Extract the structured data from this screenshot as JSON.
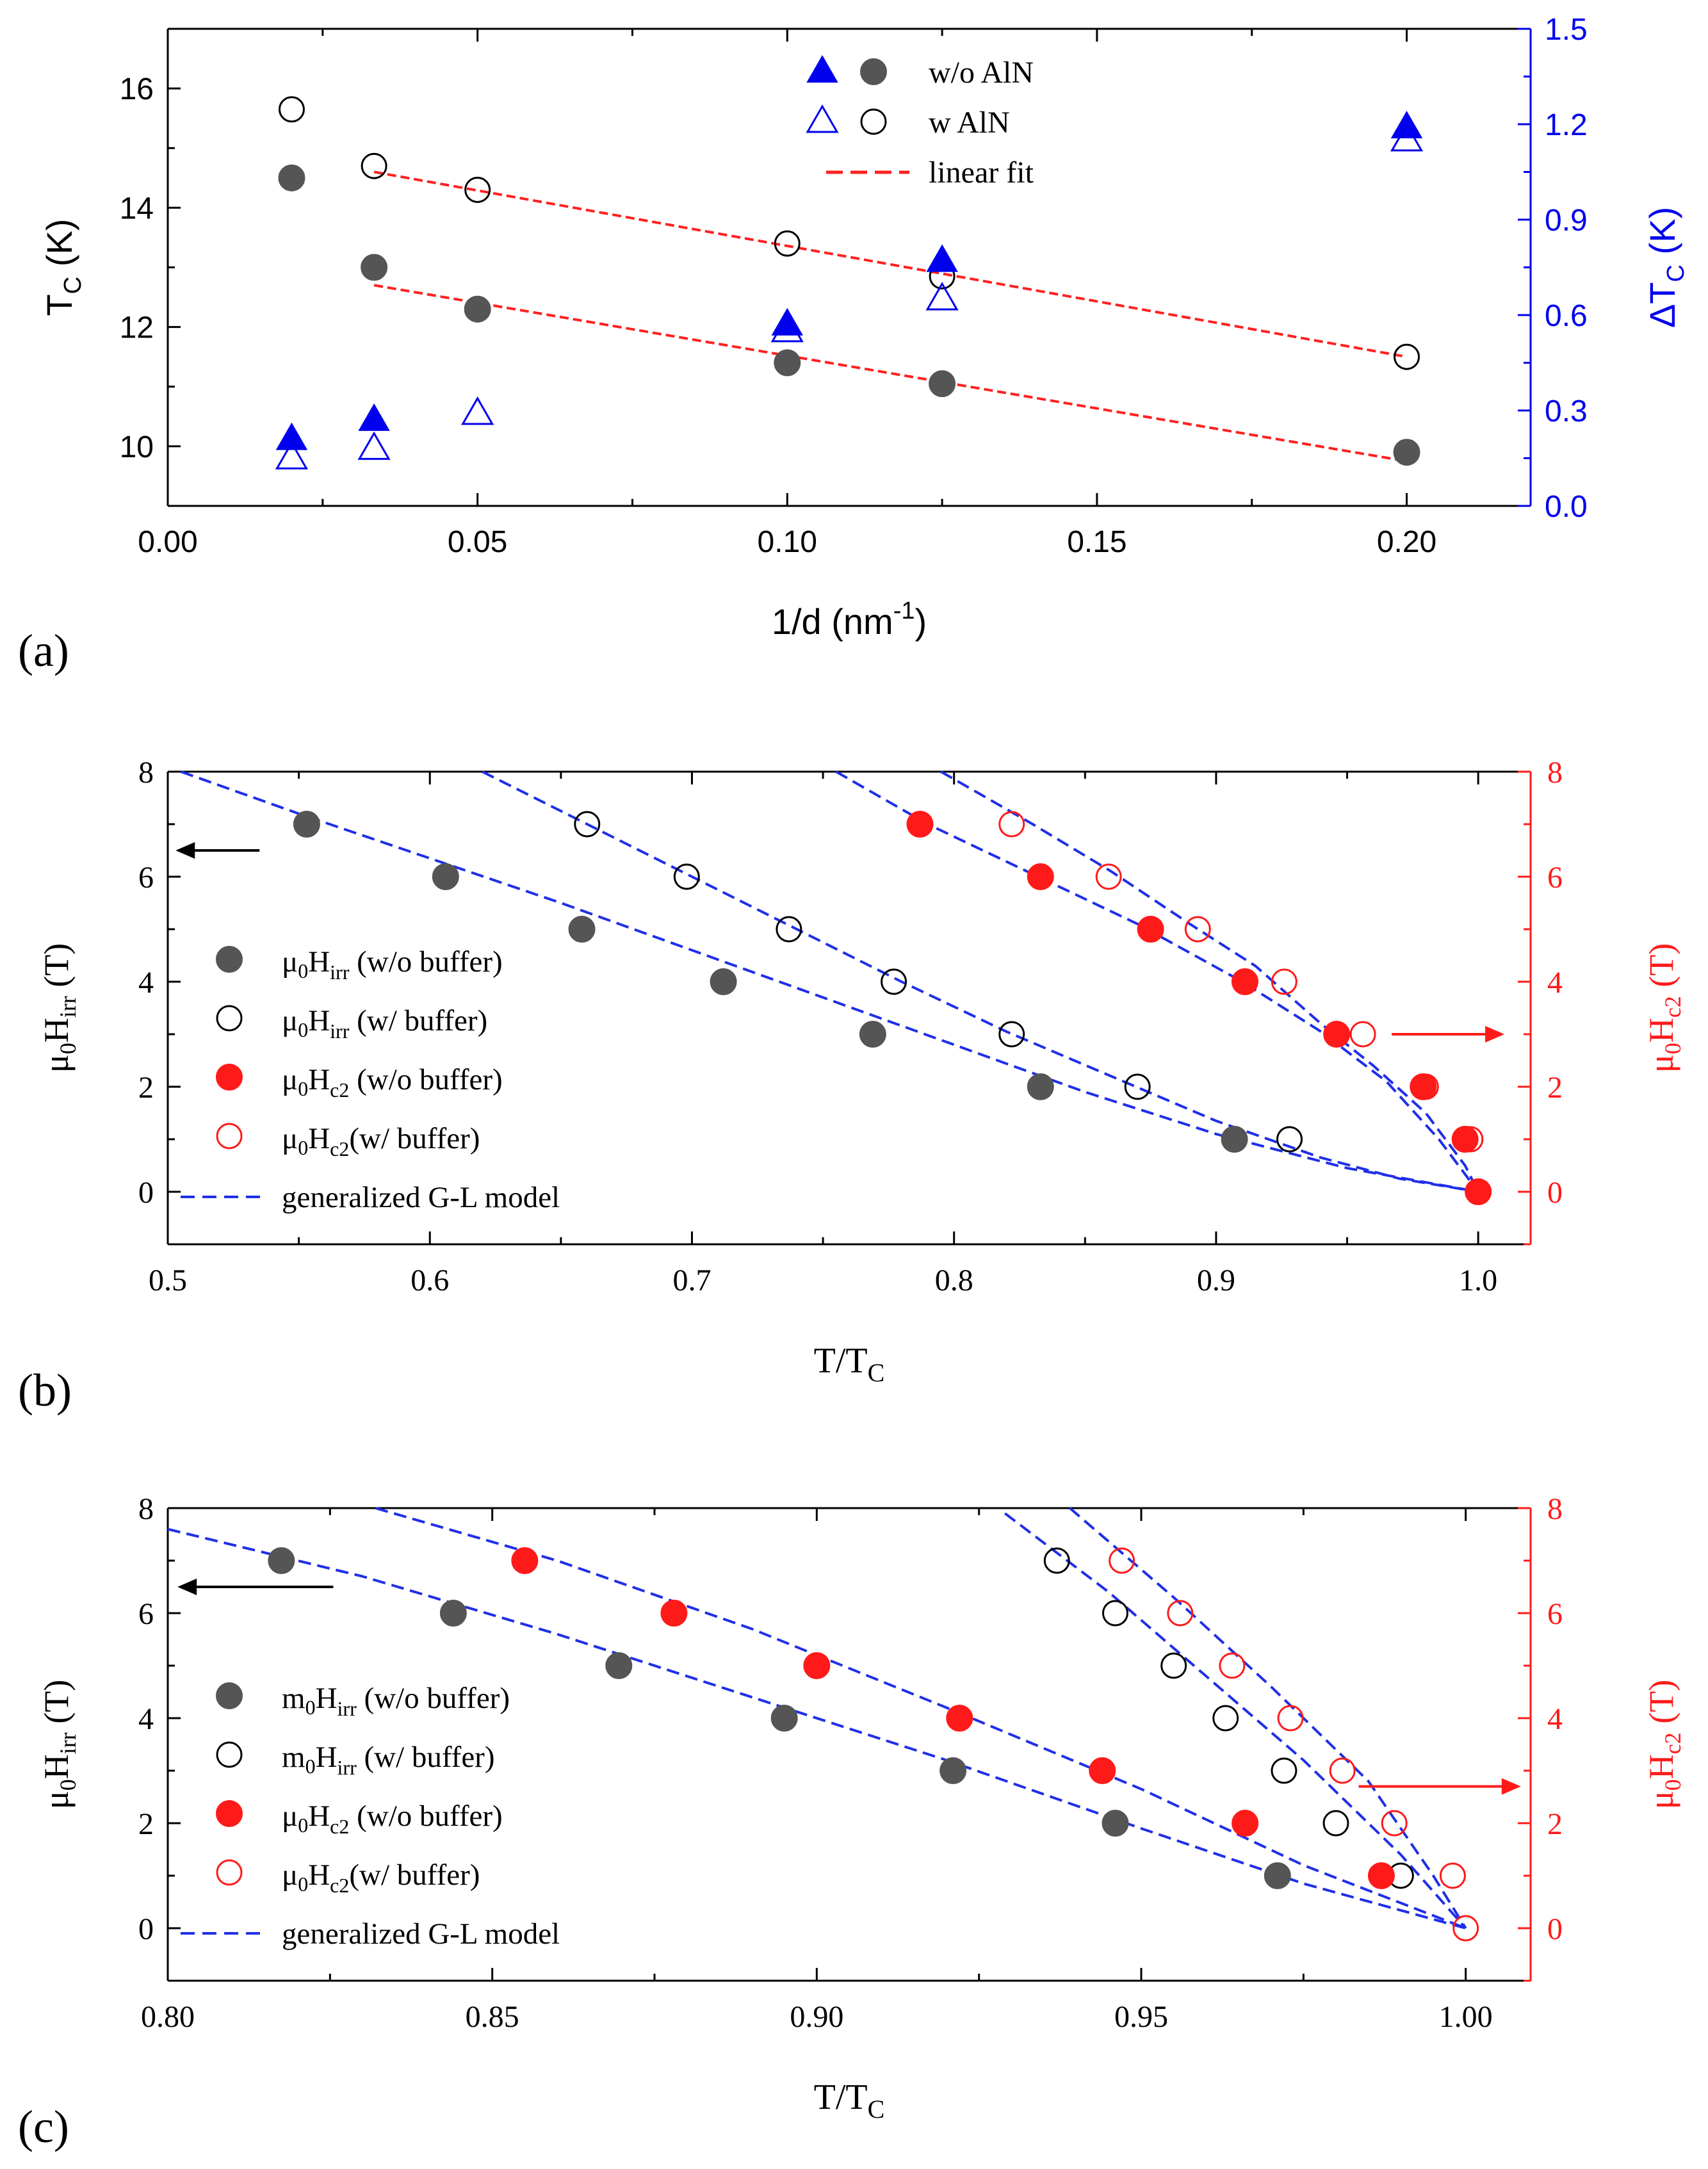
{
  "colors": {
    "axis": "#000000",
    "blue": "#0000ee",
    "red": "#ff1a1a",
    "gray": "#555555",
    "fitRed": "#ff2020",
    "fitBlue": "#1f2fe8"
  },
  "chart_data": [
    {
      "id": "a",
      "type": "scatter",
      "panel_label": "(a)",
      "xlabel": "1/d (nm",
      "xlabel_sup": "-1",
      "xlabel_end": ")",
      "ylabel": "T",
      "ylabel_sub": "C",
      "ylabel_end": " (K)",
      "y2label": "ΔT",
      "y2label_sub": "C",
      "y2label_end": " (K)",
      "xlim": [
        0,
        0.22
      ],
      "ylim": [
        9,
        17
      ],
      "y2lim": [
        0,
        1.5
      ],
      "xticks": [
        0,
        0.05,
        0.1,
        0.15,
        0.2
      ],
      "xticklabels": [
        "0.00",
        "0.05",
        "0.10",
        "0.15",
        "0.20"
      ],
      "yticks": [
        10,
        12,
        14,
        16
      ],
      "yticklabels": [
        "10",
        "12",
        "14",
        "16"
      ],
      "y2ticks": [
        0,
        0.3,
        0.6,
        0.9,
        1.2,
        1.5
      ],
      "y2ticklabels": [
        "0.0",
        "0.3",
        "0.6",
        "0.9",
        "1.2",
        "1.5"
      ],
      "legend": [
        {
          "symbols": [
            "tri-filled",
            "circle-filled"
          ],
          "text": "w/o AlN"
        },
        {
          "symbols": [
            "tri-open",
            "circle-open"
          ],
          "text": "w AlN"
        },
        {
          "symbols": [
            "dash-red"
          ],
          "text": "linear fit"
        }
      ],
      "series": [
        {
          "name": "Tc w/o AlN",
          "marker": "circle-filled",
          "axis": "left",
          "x": [
            0.02,
            0.0333,
            0.05,
            0.1,
            0.125,
            0.2
          ],
          "y": [
            14.5,
            13.0,
            12.3,
            11.4,
            11.05,
            9.9
          ]
        },
        {
          "name": "Tc w AlN",
          "marker": "circle-open",
          "axis": "left",
          "x": [
            0.02,
            0.0333,
            0.05,
            0.1,
            0.125,
            0.2
          ],
          "y": [
            15.65,
            14.7,
            14.3,
            13.4,
            12.85,
            11.5
          ]
        },
        {
          "name": "dTc w/o AlN",
          "marker": "tri-filled",
          "axis": "right",
          "x": [
            0.02,
            0.0333,
            0.1,
            0.125,
            0.2
          ],
          "y": [
            0.21,
            0.27,
            0.57,
            0.77,
            1.19
          ]
        },
        {
          "name": "dTc w AlN",
          "marker": "tri-open",
          "axis": "right",
          "x": [
            0.02,
            0.0333,
            0.05,
            0.1,
            0.125,
            0.2
          ],
          "y": [
            0.15,
            0.18,
            0.29,
            0.55,
            0.65,
            1.15
          ]
        }
      ],
      "fits": [
        {
          "name": "fit w/o AlN",
          "x": [
            0.0333,
            0.2
          ],
          "y": [
            12.7,
            9.75
          ]
        },
        {
          "name": "fit w AlN",
          "x": [
            0.0333,
            0.2
          ],
          "y": [
            14.6,
            11.5
          ]
        }
      ]
    },
    {
      "id": "b",
      "type": "scatter",
      "panel_label": "(b)",
      "xlabel": "T/T",
      "xlabel_sub": "C",
      "ylabel_mu": "μ",
      "ylabel_0": "0",
      "ylabel_H": "H",
      "ylabel_sub": "irr",
      "ylabel_end": " (T)",
      "y2label_mu": "μ",
      "y2label_0": "0",
      "y2label_H": "H",
      "y2label_sub": "c2",
      "y2label_end": " (T)",
      "xlim": [
        0.5,
        1.02
      ],
      "ylim": [
        -1,
        8
      ],
      "xticks": [
        0.5,
        0.6,
        0.7,
        0.8,
        0.9,
        1.0
      ],
      "xticklabels": [
        "0.5",
        "0.6",
        "0.7",
        "0.8",
        "0.9",
        "1.0"
      ],
      "yticks": [
        0,
        2,
        4,
        6,
        8
      ],
      "yticklabels": [
        "0",
        "2",
        "4",
        "6",
        "8"
      ],
      "legend": [
        {
          "symbol": "circle-filled",
          "pre": "μ",
          "zero": "0",
          "H": "H",
          "sub": "irr",
          "text": " (w/o buffer)"
        },
        {
          "symbol": "circle-open",
          "pre": "μ",
          "zero": "0",
          "H": "H",
          "sub": "irr",
          "text": "  (w/ buffer)"
        },
        {
          "symbol": "circle-red-filled",
          "pre": "μ",
          "zero": "0",
          "H": "H",
          "sub": "c2",
          "text": " (w/o buffer)"
        },
        {
          "symbol": "circle-red-open",
          "pre": "μ",
          "zero": "0",
          "H": "H",
          "sub": "c2",
          "text": "(w/ buffer)"
        },
        {
          "symbol": "dash-blue",
          "text": "generalized G-L model"
        }
      ],
      "series": [
        {
          "name": "Hirr w/o buffer",
          "marker": "circle-filled",
          "x": [
            0.553,
            0.606,
            0.658,
            0.712,
            0.769,
            0.833,
            0.907
          ],
          "y": [
            7,
            6,
            5,
            4,
            3,
            2,
            1
          ]
        },
        {
          "name": "Hirr w/ buffer",
          "marker": "circle-open",
          "x": [
            0.66,
            0.698,
            0.737,
            0.777,
            0.822,
            0.87,
            0.928
          ],
          "y": [
            7,
            6,
            5,
            4,
            3,
            2,
            1
          ]
        },
        {
          "name": "Hc2 w/o buffer",
          "marker": "circle-red-filled",
          "x": [
            0.787,
            0.833,
            0.875,
            0.911,
            0.946,
            0.979,
            0.995,
            1.0
          ],
          "y": [
            7,
            6,
            5,
            4,
            3,
            2,
            1,
            0
          ]
        },
        {
          "name": "Hc2 w/ buffer",
          "marker": "circle-red-open",
          "x": [
            0.822,
            0.859,
            0.893,
            0.926,
            0.956,
            0.98,
            0.997,
            1.0
          ],
          "y": [
            7,
            6,
            5,
            4,
            3,
            2,
            1,
            0
          ]
        }
      ],
      "fits": [
        {
          "name": "GL Hirr w/o",
          "x": [
            0.505,
            0.55,
            0.6,
            0.65,
            0.7,
            0.75,
            0.8,
            0.85,
            0.9,
            0.95,
            1.0
          ],
          "y": [
            8.0,
            7.2,
            6.35,
            5.5,
            4.6,
            3.7,
            2.8,
            1.9,
            1.1,
            0.45,
            0
          ]
        },
        {
          "name": "GL Hirr w/",
          "x": [
            0.62,
            0.66,
            0.7,
            0.74,
            0.78,
            0.82,
            0.86,
            0.9,
            0.94,
            0.97,
            1.0
          ],
          "y": [
            8.0,
            7.0,
            6.0,
            5.0,
            4.0,
            3.05,
            2.2,
            1.35,
            0.65,
            0.25,
            0
          ]
        },
        {
          "name": "GL Hc2 w/o",
          "x": [
            0.755,
            0.79,
            0.83,
            0.87,
            0.91,
            0.94,
            0.965,
            0.985,
            1.0
          ],
          "y": [
            8.0,
            7.0,
            6.05,
            5.1,
            4.0,
            3.05,
            2.1,
            1.0,
            0
          ]
        },
        {
          "name": "GL Hc2 w/",
          "x": [
            0.795,
            0.83,
            0.86,
            0.89,
            0.915,
            0.94,
            0.96,
            0.98,
            0.995,
            1.0
          ],
          "y": [
            8.0,
            7.0,
            6.1,
            5.1,
            4.3,
            3.2,
            2.4,
            1.5,
            0.5,
            0
          ]
        }
      ],
      "arrows": [
        {
          "direction": "left",
          "at": [
            0.535,
            6.5
          ],
          "to": [
            0.503,
            6.5
          ],
          "color": "black"
        },
        {
          "direction": "right",
          "at": [
            0.967,
            3.0
          ],
          "to": [
            1.01,
            3.0
          ],
          "color": "red"
        }
      ]
    },
    {
      "id": "c",
      "type": "scatter",
      "panel_label": "(c)",
      "xlabel": "T/T",
      "xlabel_sub": "C",
      "ylabel_mu": "μ",
      "ylabel_0": "0",
      "ylabel_H": "H",
      "ylabel_sub": "irr",
      "ylabel_end": " (T)",
      "y2label_mu": "μ",
      "y2label_0": "0",
      "y2label_H": "H",
      "y2label_sub": "c2",
      "y2label_end": " (T)",
      "xlim": [
        0.8,
        1.01
      ],
      "ylim": [
        -1,
        8
      ],
      "xticks": [
        0.8,
        0.85,
        0.9,
        0.95,
        1.0
      ],
      "xticklabels": [
        "0.80",
        "0.85",
        "0.90",
        "0.95",
        "1.00"
      ],
      "yticks": [
        0,
        2,
        4,
        6,
        8
      ],
      "yticklabels": [
        "0",
        "2",
        "4",
        "6",
        "8"
      ],
      "legend": [
        {
          "symbol": "circle-filled",
          "pre": "m",
          "zero": "0",
          "H": "H",
          "sub": "irr",
          "text": " (w/o buffer)"
        },
        {
          "symbol": "circle-open",
          "pre": "m",
          "zero": "0",
          "H": "H",
          "sub": "irr",
          "text": "  (w/ buffer)"
        },
        {
          "symbol": "circle-red-filled",
          "pre": "μ",
          "zero": "0",
          "H": "H",
          "sub": "c2",
          "text": " (w/o buffer)"
        },
        {
          "symbol": "circle-red-open",
          "pre": "μ",
          "zero": "0",
          "H": "H",
          "sub": "c2",
          "text": "(w/ buffer)"
        },
        {
          "symbol": "dash-blue",
          "text": "generalized G-L model"
        }
      ],
      "series": [
        {
          "name": "Hirr w/o buffer",
          "marker": "circle-filled",
          "x": [
            0.8175,
            0.844,
            0.8695,
            0.895,
            0.921,
            0.946,
            0.971
          ],
          "y": [
            7,
            6,
            5,
            4,
            3,
            2,
            1
          ]
        },
        {
          "name": "Hirr w/ buffer",
          "marker": "circle-open",
          "x": [
            0.937,
            0.946,
            0.955,
            0.963,
            0.972,
            0.98,
            0.99
          ],
          "y": [
            7,
            6,
            5,
            4,
            3,
            2,
            1
          ]
        },
        {
          "name": "Hc2 w/o buffer",
          "marker": "circle-red-filled",
          "x": [
            0.855,
            0.878,
            0.9,
            0.922,
            0.944,
            0.966,
            0.987
          ],
          "y": [
            7,
            6,
            5,
            4,
            3,
            2,
            1
          ]
        },
        {
          "name": "Hc2 w/ buffer",
          "marker": "circle-red-open",
          "x": [
            0.947,
            0.956,
            0.964,
            0.973,
            0.981,
            0.989,
            0.998,
            1.0
          ],
          "y": [
            7,
            6,
            5,
            4,
            3,
            2,
            1,
            0
          ]
        }
      ],
      "fits": [
        {
          "name": "GL Hirr w/o",
          "x": [
            0.8,
            0.83,
            0.86,
            0.89,
            0.92,
            0.95,
            0.975,
            1.0
          ],
          "y": [
            7.6,
            6.7,
            5.6,
            4.4,
            3.2,
            1.9,
            0.85,
            0
          ]
        },
        {
          "name": "GL Hc2 w/o",
          "x": [
            0.832,
            0.86,
            0.89,
            0.92,
            0.95,
            0.975,
            1.0
          ],
          "y": [
            8.0,
            7.0,
            5.7,
            4.2,
            2.65,
            1.2,
            0
          ]
        },
        {
          "name": "GL Hirr w/",
          "x": [
            0.929,
            0.945,
            0.96,
            0.975,
            0.99,
            1.0
          ],
          "y": [
            7.9,
            6.4,
            4.8,
            3.2,
            1.4,
            0
          ]
        },
        {
          "name": "GL Hc2 w/",
          "x": [
            0.939,
            0.955,
            0.97,
            0.985,
            0.995,
            1.0
          ],
          "y": [
            8.0,
            6.3,
            4.6,
            2.8,
            1.0,
            0
          ]
        }
      ],
      "arrows": [
        {
          "direction": "left",
          "at": [
            0.8255,
            6.5
          ],
          "to": [
            0.8015,
            6.5
          ],
          "color": "black"
        },
        {
          "direction": "right",
          "at": [
            0.9835,
            2.7
          ],
          "to": [
            1.0085,
            2.7
          ],
          "color": "red"
        }
      ]
    }
  ]
}
